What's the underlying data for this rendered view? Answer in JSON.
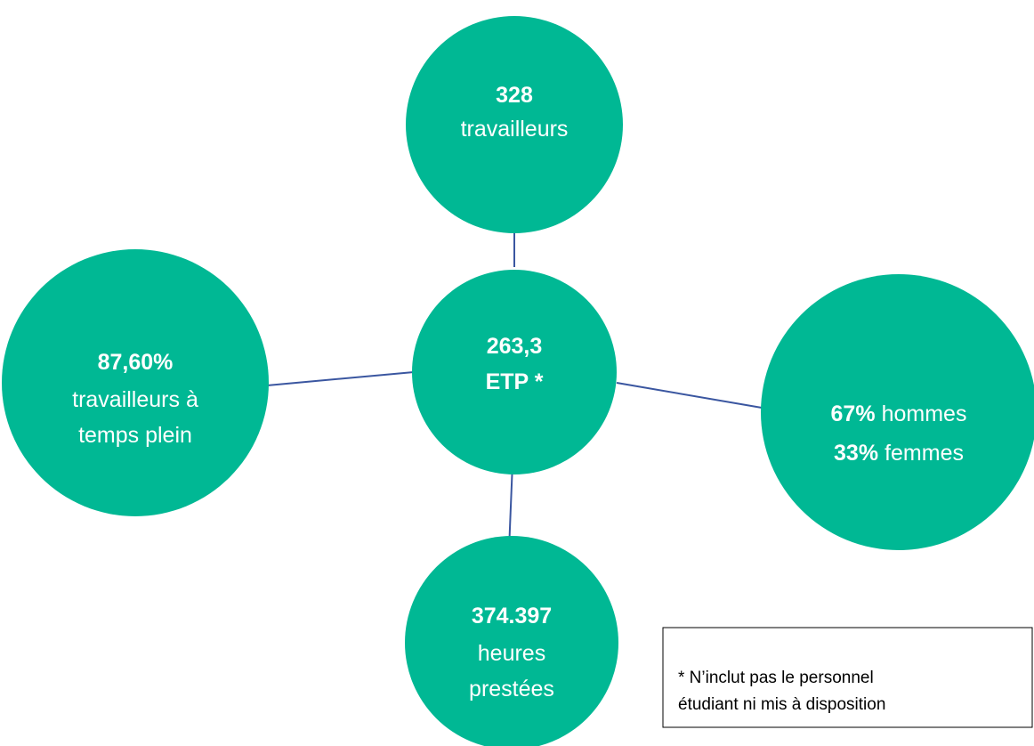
{
  "nodes": [
    {
      "lines": [
        [
          {
            "text": "328",
            "bold": true
          }
        ],
        [
          {
            "text": "travailleurs"
          }
        ]
      ]
    },
    {
      "lines": [
        [
          {
            "text": "263,3",
            "bold": true
          }
        ],
        [
          {
            "text": "ETP *",
            "bold": true
          }
        ]
      ]
    },
    {
      "lines": [
        [
          {
            "text": "87,60%",
            "bold": true
          }
        ],
        [
          {
            "text": "travailleurs à"
          }
        ],
        [
          {
            "text": "temps plein"
          }
        ]
      ]
    },
    {
      "lines": [
        [
          {
            "text": "67%",
            "bold": true
          },
          {
            "text": "hommes"
          }
        ],
        [
          {
            "text": "33%",
            "bold": true
          },
          {
            "text": "femmes"
          }
        ]
      ]
    },
    {
      "lines": [
        [
          {
            "text": "374.397",
            "bold": true
          }
        ],
        [
          {
            "text": "heures"
          }
        ],
        [
          {
            "text": "prestées"
          }
        ]
      ]
    }
  ],
  "footnote": {
    "lines": [
      "* N’inclut pas le personnel",
      "étudiant ni mis à disposition"
    ]
  }
}
